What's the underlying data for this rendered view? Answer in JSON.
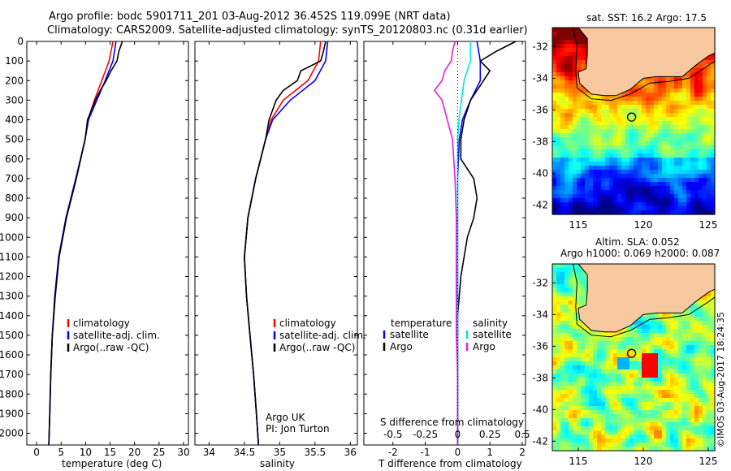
{
  "header": {
    "line1": "Argo profile: bodc 5901711_201 03-Aug-2012 36.452S 119.099E (NRT data)",
    "line2": "Climatology: CARS2009. Satellite-adjusted climatology: synTS_20120803.nc (0.31d earlier)"
  },
  "side_note": "©IMOS 03-Aug-2017 18:24:35",
  "map1_title": "sat. SST: 16.2 Argo: 17.5",
  "map2_title1": "Altim. SLA: 0.052",
  "map2_title2": "Argo h1000: 0.069 h2000: 0.087",
  "map_axes": {
    "lat_ticks": [
      "-32",
      "-34",
      "-36",
      "-38",
      "-40",
      "-42"
    ],
    "lon_ticks": [
      "115",
      "120",
      "125"
    ]
  },
  "argo_credit": [
    "Argo UK",
    "PI: Jon Turton"
  ],
  "colors": {
    "climatology": "#ff0000",
    "satellite": "#0000ff",
    "argo": "#000000",
    "sal_satellite": "#00e5e5",
    "sal_argo": "#e020e0",
    "land": "#f8c8a0"
  },
  "chart_data": [
    {
      "type": "line",
      "xlabel": "temperature (deg C)",
      "ylabel": "",
      "xlim": [
        -2,
        31
      ],
      "ylim": [
        2060,
        0
      ],
      "xticks": [
        "0",
        "5",
        "10",
        "15",
        "20",
        "25",
        "30"
      ],
      "yticks": [
        "0",
        "100",
        "200",
        "300",
        "400",
        "500",
        "600",
        "700",
        "800",
        "900",
        "1000",
        "1100",
        "1200",
        "1300",
        "1400",
        "1500",
        "1600",
        "1700",
        "1800",
        "1900",
        "2000"
      ],
      "legend": [
        "climatology",
        "satellite-adj. clim.",
        "Argo(..raw -QC)"
      ],
      "series": [
        {
          "name": "climatology",
          "depth": [
            0,
            100,
            200,
            300,
            400,
            500,
            700,
            900,
            1100,
            1300,
            1500,
            1700,
            1900,
            2060
          ],
          "values": [
            15.6,
            14.8,
            13.3,
            11.8,
            10.5,
            9.9,
            8.1,
            6.1,
            4.6,
            3.8,
            3.2,
            2.9,
            2.7,
            2.5
          ]
        },
        {
          "name": "satellite-adj. clim.",
          "depth": [
            0,
            100,
            200,
            300,
            400,
            500,
            700,
            900,
            1100,
            1300,
            1500,
            1700,
            1900,
            2060
          ],
          "values": [
            16.2,
            15.6,
            14.0,
            12.3,
            10.6,
            9.9,
            8.0,
            6.0,
            4.5,
            3.7,
            3.2,
            2.9,
            2.7,
            2.5
          ]
        },
        {
          "name": "Argo(..raw -QC)",
          "depth": [
            0,
            50,
            100,
            150,
            200,
            250,
            300,
            400,
            500,
            700,
            900,
            1100,
            1300,
            1500,
            1700,
            1900,
            2060
          ],
          "values": [
            17.5,
            16.8,
            16.4,
            15.2,
            14.2,
            13.0,
            12.0,
            10.4,
            9.9,
            8.1,
            6.1,
            4.6,
            3.8,
            3.2,
            2.9,
            2.7,
            2.5
          ]
        }
      ]
    },
    {
      "type": "line",
      "xlabel": "salinity",
      "ylabel": "",
      "xlim": [
        33.8,
        36.1
      ],
      "ylim": [
        2060,
        0
      ],
      "xticks": [
        "34",
        "34.5",
        "35",
        "35.5",
        "36"
      ],
      "legend": [
        "climatology",
        "satellite-adj. clim.",
        "Argo(..raw -QC)"
      ],
      "series": [
        {
          "name": "climatology",
          "depth": [
            0,
            100,
            200,
            300,
            400,
            500,
            700,
            900,
            1100,
            1300,
            1500,
            1700,
            1900,
            2060
          ],
          "values": [
            35.58,
            35.55,
            35.4,
            35.05,
            34.88,
            34.8,
            34.66,
            34.55,
            34.5,
            34.53,
            34.58,
            34.63,
            34.67,
            34.7
          ]
        },
        {
          "name": "satellite-adj. clim.",
          "depth": [
            0,
            100,
            200,
            300,
            400,
            500,
            700,
            900,
            1100,
            1300,
            1500,
            1700,
            1900,
            2060
          ],
          "values": [
            35.68,
            35.65,
            35.5,
            35.15,
            34.9,
            34.8,
            34.66,
            34.55,
            34.5,
            34.53,
            34.58,
            34.63,
            34.67,
            34.7
          ]
        },
        {
          "name": "Argo(..raw -QC)",
          "depth": [
            0,
            50,
            100,
            150,
            200,
            250,
            300,
            400,
            500,
            700,
            900,
            1100,
            1300,
            1500,
            1700,
            1900,
            2060
          ],
          "values": [
            35.65,
            35.62,
            35.58,
            35.3,
            35.25,
            35.05,
            34.95,
            34.85,
            34.8,
            34.66,
            34.55,
            34.5,
            34.53,
            34.58,
            34.63,
            34.67,
            34.7
          ]
        }
      ]
    },
    {
      "type": "line",
      "xlabel": "T difference from climatology",
      "x2label": "S difference from climatology",
      "xlim": [
        -2.9,
        2.1
      ],
      "ylim": [
        2060,
        0
      ],
      "xticks": [
        "-2",
        "-1",
        "0",
        "1",
        "2"
      ],
      "x2ticks": [
        "-0.5",
        "-0.25",
        "0",
        "0.25",
        "0.5"
      ],
      "legend_temperature": {
        "title": "temperature",
        "items": [
          "satellite",
          "Argo"
        ]
      },
      "legend_salinity": {
        "title": "salinity",
        "items": [
          "satellite",
          "Argo"
        ]
      },
      "series": [
        {
          "name": "satellite",
          "quantity": "T",
          "depth": [
            0,
            100,
            200,
            300,
            400,
            500,
            700,
            900,
            1100,
            1300,
            1500,
            1700,
            1900,
            2060
          ],
          "values": [
            0.6,
            0.7,
            0.7,
            0.4,
            0.15,
            0.05,
            0.0,
            0.0,
            0.0,
            0.0,
            0.0,
            0.0,
            0.0,
            0.0
          ]
        },
        {
          "name": "Argo",
          "quantity": "T",
          "depth": [
            0,
            50,
            100,
            150,
            200,
            250,
            300,
            400,
            500,
            600,
            700,
            800,
            900,
            1000,
            1100,
            1200,
            1300,
            1400,
            1500,
            1700,
            1900,
            2060
          ],
          "values": [
            1.8,
            1.2,
            0.7,
            1.0,
            0.8,
            0.6,
            0.4,
            0.2,
            0.1,
            0.1,
            0.5,
            0.6,
            0.5,
            0.3,
            0.2,
            0.1,
            0.05,
            0.0,
            0.0,
            0.0,
            0.0,
            0.0
          ]
        },
        {
          "name": "satellite",
          "quantity": "S",
          "depth": [
            0,
            100,
            200,
            300,
            400,
            500,
            700,
            900,
            1100,
            1300,
            1500,
            1700,
            1900,
            2060
          ],
          "values": [
            0.1,
            0.1,
            0.05,
            0.03,
            0.01,
            0.0,
            0.0,
            0.0,
            0.0,
            0.0,
            0.0,
            0.0,
            0.0,
            0.0
          ]
        },
        {
          "name": "Argo",
          "quantity": "S",
          "depth": [
            0,
            50,
            100,
            150,
            200,
            250,
            300,
            400,
            500,
            700,
            900,
            1100,
            1300,
            1500,
            1700,
            1900,
            2060
          ],
          "values": [
            -0.02,
            -0.04,
            -0.05,
            -0.1,
            -0.12,
            -0.18,
            -0.12,
            -0.08,
            -0.04,
            -0.02,
            -0.01,
            -0.01,
            -0.01,
            -0.01,
            0.0,
            0.0,
            0.0
          ]
        }
      ]
    },
    {
      "type": "heatmap",
      "title": "sat. SST: 16.2 Argo: 17.5",
      "xlim": [
        113,
        125.5
      ],
      "ylim": [
        -42.6,
        -30.8
      ],
      "xticks": [
        "115",
        "120",
        "125"
      ],
      "yticks": [
        "-32",
        "-34",
        "-36",
        "-38",
        "-40",
        "-42"
      ],
      "argo_position": {
        "lon": 119.099,
        "lat": -36.452
      }
    },
    {
      "type": "heatmap",
      "title": "Argo h1000: 0.069 h2000: 0.087",
      "xlim": [
        113,
        125.5
      ],
      "ylim": [
        -42.6,
        -30.8
      ],
      "xticks": [
        "115",
        "120",
        "125"
      ],
      "yticks": [
        "-32",
        "-34",
        "-36",
        "-38",
        "-40",
        "-42"
      ],
      "argo_position": {
        "lon": 119.099,
        "lat": -36.452
      }
    }
  ]
}
